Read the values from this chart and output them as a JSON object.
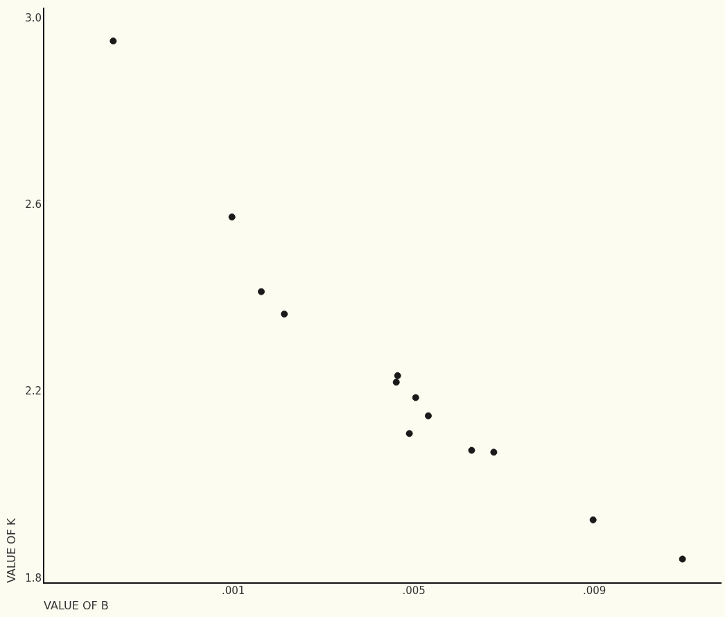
{
  "chart_data": {
    "type": "scatter",
    "xlabel": "VALUE OF B",
    "ylabel": "VALUE OF K",
    "x": [
      -0.00166,
      0.00097,
      0.00162,
      0.00213,
      0.00464,
      0.00461,
      0.00504,
      0.00532,
      0.0049,
      0.00628,
      0.00677,
      0.00897,
      0.01095
    ],
    "values": [
      2.952,
      2.575,
      2.415,
      2.367,
      2.235,
      2.221,
      2.188,
      2.149,
      2.111,
      2.075,
      2.071,
      1.926,
      1.842
    ],
    "color": "#1a1a1a",
    "marker": "circle",
    "grid": false,
    "legend": false,
    "xlim": [
      -0.0032,
      0.0118
    ],
    "xticks": [
      {
        "value": 0.001,
        "label": ".001"
      },
      {
        "value": 0.005,
        "label": ".005"
      },
      {
        "value": 0.009,
        "label": ".009"
      }
    ],
    "ylim": [
      1.791,
      3.022
    ],
    "yticks": [
      {
        "value": 1.8,
        "label": "1.8"
      },
      {
        "value": 2.2,
        "label": "2.2"
      },
      {
        "value": 2.6,
        "label": "2.6"
      },
      {
        "value": 3.0,
        "label": "3.0"
      }
    ]
  }
}
